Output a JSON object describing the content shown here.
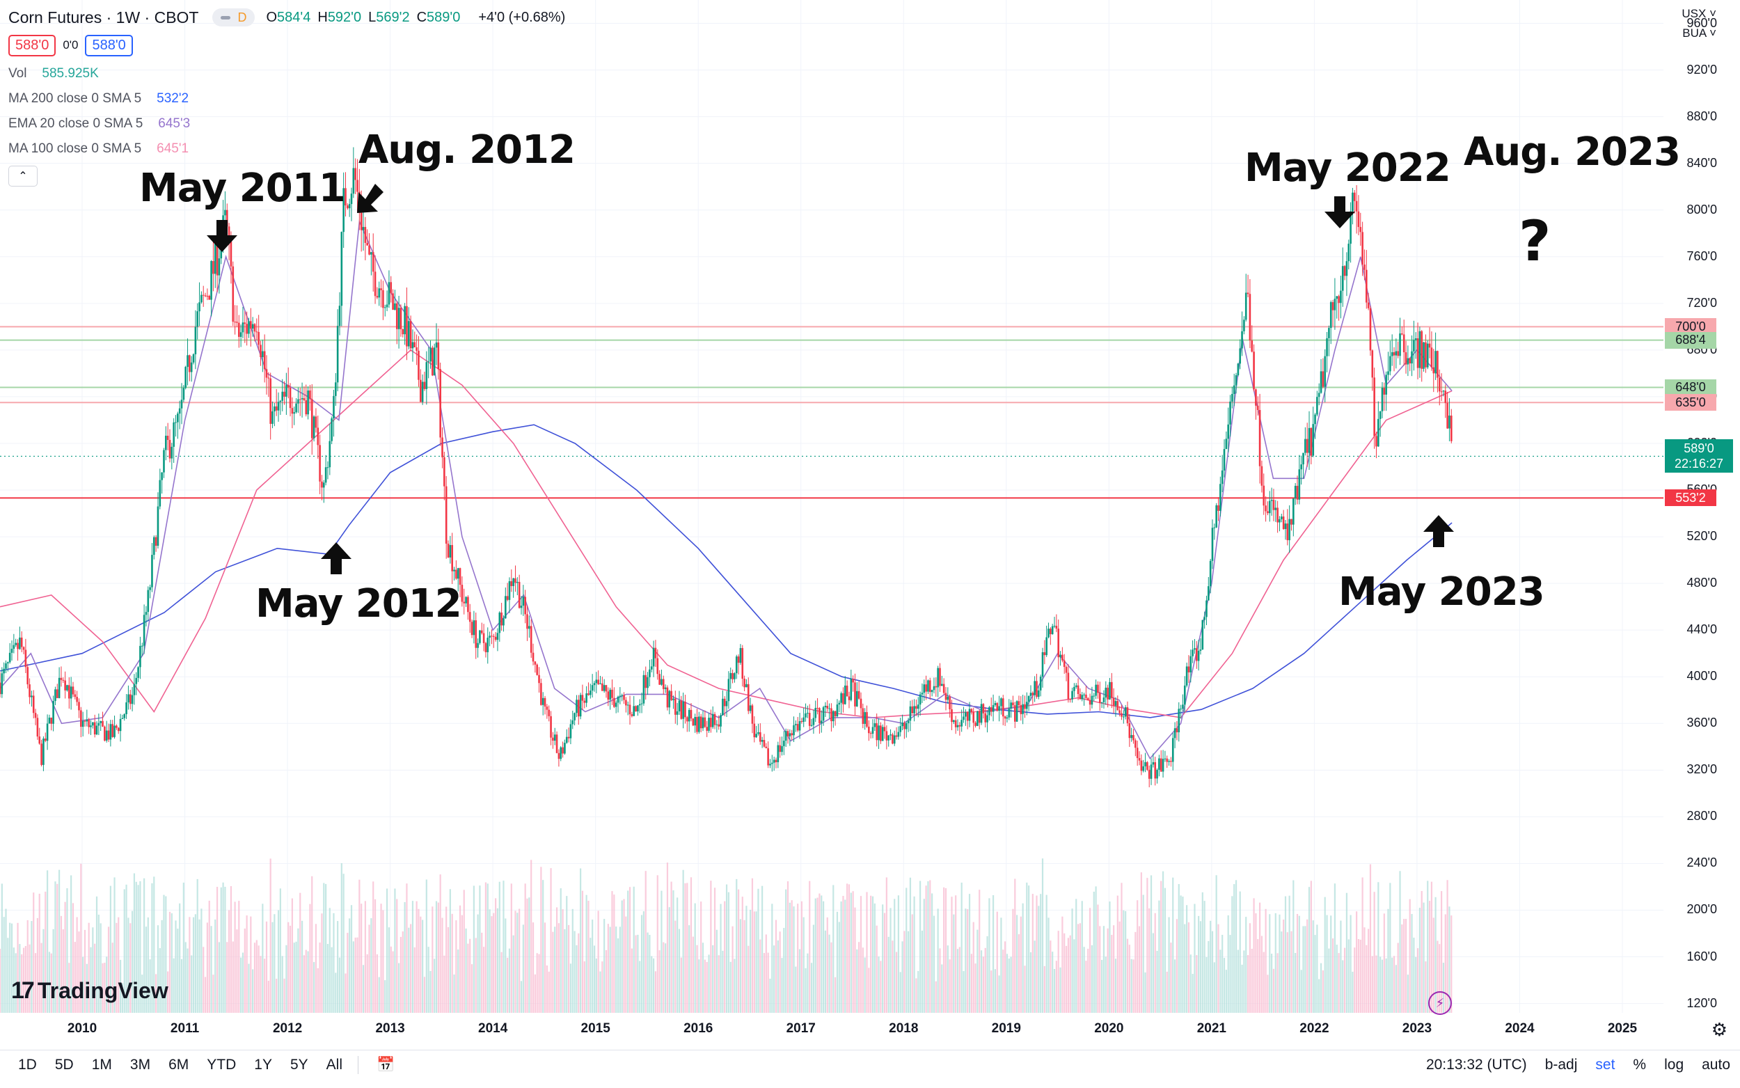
{
  "header": {
    "title": "Corn Futures · 1W · CBOT",
    "interval_badge": "D",
    "ohlc": [
      {
        "k": "O",
        "v": "584'4"
      },
      {
        "k": "H",
        "v": "592'0"
      },
      {
        "k": "L",
        "v": "569'2"
      },
      {
        "k": "C",
        "v": "589'0"
      }
    ],
    "change": "+4'0 (+0.68%)",
    "bid": "588'0",
    "spread": "0'0",
    "ask": "588'0"
  },
  "indicators": [
    {
      "name": "Vol",
      "value": "585.925K",
      "color": "#26a69a"
    },
    {
      "name": "MA 200 close 0 SMA 5",
      "value": "532'2",
      "color": "#2962ff"
    },
    {
      "name": "EMA 20 close 0 SMA 5",
      "value": "645'3",
      "color": "#9575cd"
    },
    {
      "name": "MA 100 close 0 SMA 5",
      "value": "645'1",
      "color": "#f48fb1"
    }
  ],
  "collapse_icon": "chevron-up-icon",
  "annotations": {
    "may2011": "May 2011",
    "aug2012": "Aug. 2012",
    "may2012": "May 2012",
    "may2022": "May 2022",
    "aug2023": "Aug. 2023",
    "question": "?",
    "may2023": "May 2023"
  },
  "currency": "USX",
  "unit": "BUA",
  "current_price": {
    "value": "589'0",
    "countdown": "22:16:27"
  },
  "price_tags": [
    {
      "label": "700'0",
      "price": 700,
      "color": "#f7a8ad"
    },
    {
      "label": "688'4",
      "price": 688.5,
      "color": "#a5d6a7"
    },
    {
      "label": "648'0",
      "price": 648,
      "color": "#a5d6a7"
    },
    {
      "label": "635'0",
      "price": 635,
      "color": "#f7a8ad"
    },
    {
      "label": "553'2",
      "price": 553.25,
      "color": "#f23645"
    }
  ],
  "brand": "TradingView",
  "bottom": {
    "ranges": [
      "1D",
      "5D",
      "1M",
      "3M",
      "6M",
      "YTD",
      "1Y",
      "5Y",
      "All"
    ],
    "time": "20:13:32 (UTC)",
    "badj": "b-adj",
    "set": "set",
    "percent": "%",
    "log": "log",
    "auto": "auto"
  },
  "chart_data": {
    "type": "candlestick",
    "title": "Corn Futures · 1W · CBOT",
    "y_axis": {
      "ticks": [
        "120'0",
        "160'0",
        "200'0",
        "240'0",
        "280'0",
        "320'0",
        "360'0",
        "400'0",
        "440'0",
        "480'0",
        "520'0",
        "560'0",
        "600'0",
        "640'0",
        "680'0",
        "720'0",
        "760'0",
        "800'0",
        "840'0",
        "880'0",
        "920'0",
        "960'0"
      ],
      "ylim": [
        112,
        980
      ]
    },
    "x_axis": {
      "ticks": [
        "2010",
        "2011",
        "2012",
        "2013",
        "2014",
        "2015",
        "2016",
        "2017",
        "2018",
        "2019",
        "2020",
        "2021",
        "2022",
        "2023",
        "2024",
        "2025"
      ],
      "xlim": [
        2009.2,
        2025.4
      ]
    },
    "price_path": [
      [
        2009.2,
        395
      ],
      [
        2009.4,
        430
      ],
      [
        2009.6,
        330
      ],
      [
        2009.8,
        405
      ],
      [
        2010.0,
        360
      ],
      [
        2010.3,
        350
      ],
      [
        2010.5,
        385
      ],
      [
        2010.65,
        470
      ],
      [
        2010.8,
        590
      ],
      [
        2010.95,
        620
      ],
      [
        2011.1,
        700
      ],
      [
        2011.25,
        740
      ],
      [
        2011.4,
        790
      ],
      [
        2011.5,
        690
      ],
      [
        2011.7,
        710
      ],
      [
        2011.85,
        620
      ],
      [
        2012.0,
        640
      ],
      [
        2012.2,
        640
      ],
      [
        2012.35,
        560
      ],
      [
        2012.45,
        630
      ],
      [
        2012.55,
        810
      ],
      [
        2012.65,
        830
      ],
      [
        2012.8,
        750
      ],
      [
        2012.95,
        730
      ],
      [
        2013.15,
        700
      ],
      [
        2013.3,
        650
      ],
      [
        2013.45,
        680
      ],
      [
        2013.55,
        520
      ],
      [
        2013.7,
        470
      ],
      [
        2013.85,
        430
      ],
      [
        2014.0,
        430
      ],
      [
        2014.2,
        490
      ],
      [
        2014.35,
        440
      ],
      [
        2014.5,
        370
      ],
      [
        2014.65,
        330
      ],
      [
        2014.8,
        370
      ],
      [
        2015.0,
        390
      ],
      [
        2015.2,
        380
      ],
      [
        2015.4,
        370
      ],
      [
        2015.55,
        420
      ],
      [
        2015.7,
        380
      ],
      [
        2015.85,
        370
      ],
      [
        2016.0,
        360
      ],
      [
        2016.2,
        365
      ],
      [
        2016.4,
        420
      ],
      [
        2016.55,
        350
      ],
      [
        2016.7,
        325
      ],
      [
        2016.9,
        355
      ],
      [
        2017.1,
        365
      ],
      [
        2017.3,
        370
      ],
      [
        2017.5,
        390
      ],
      [
        2017.65,
        355
      ],
      [
        2017.85,
        350
      ],
      [
        2018.0,
        355
      ],
      [
        2018.2,
        390
      ],
      [
        2018.35,
        400
      ],
      [
        2018.5,
        360
      ],
      [
        2018.7,
        365
      ],
      [
        2018.9,
        375
      ],
      [
        2019.1,
        370
      ],
      [
        2019.3,
        390
      ],
      [
        2019.45,
        450
      ],
      [
        2019.6,
        390
      ],
      [
        2019.75,
        380
      ],
      [
        2019.9,
        385
      ],
      [
        2020.0,
        390
      ],
      [
        2020.15,
        370
      ],
      [
        2020.3,
        320
      ],
      [
        2020.45,
        320
      ],
      [
        2020.6,
        330
      ],
      [
        2020.75,
        400
      ],
      [
        2020.9,
        430
      ],
      [
        2021.0,
        510
      ],
      [
        2021.2,
        640
      ],
      [
        2021.35,
        730
      ],
      [
        2021.5,
        560
      ],
      [
        2021.6,
        540
      ],
      [
        2021.75,
        520
      ],
      [
        2021.9,
        590
      ],
      [
        2022.0,
        610
      ],
      [
        2022.15,
        700
      ],
      [
        2022.3,
        760
      ],
      [
        2022.4,
        810
      ],
      [
        2022.5,
        740
      ],
      [
        2022.6,
        590
      ],
      [
        2022.7,
        670
      ],
      [
        2022.8,
        690
      ],
      [
        2022.95,
        680
      ],
      [
        2023.05,
        680
      ],
      [
        2023.15,
        670
      ],
      [
        2023.2,
        660
      ],
      [
        2023.28,
        640
      ],
      [
        2023.34,
        590
      ]
    ],
    "ma200_path": [
      [
        2009.2,
        405
      ],
      [
        2010.0,
        420
      ],
      [
        2010.8,
        455
      ],
      [
        2011.3,
        490
      ],
      [
        2011.9,
        510
      ],
      [
        2012.4,
        505
      ],
      [
        2012.6,
        530
      ],
      [
        2013.0,
        575
      ],
      [
        2013.5,
        600
      ],
      [
        2014.0,
        610
      ],
      [
        2014.4,
        616
      ],
      [
        2014.8,
        600
      ],
      [
        2015.4,
        560
      ],
      [
        2016.0,
        510
      ],
      [
        2016.5,
        460
      ],
      [
        2016.9,
        420
      ],
      [
        2017.4,
        400
      ],
      [
        2017.9,
        390
      ],
      [
        2018.4,
        378
      ],
      [
        2018.9,
        372
      ],
      [
        2019.4,
        368
      ],
      [
        2019.9,
        370
      ],
      [
        2020.4,
        365
      ],
      [
        2020.9,
        372
      ],
      [
        2021.4,
        390
      ],
      [
        2021.9,
        420
      ],
      [
        2022.4,
        460
      ],
      [
        2022.9,
        500
      ],
      [
        2023.34,
        532
      ]
    ],
    "ma100_path": [
      [
        2009.2,
        460
      ],
      [
        2009.7,
        470
      ],
      [
        2010.2,
        430
      ],
      [
        2010.7,
        370
      ],
      [
        2011.2,
        450
      ],
      [
        2011.7,
        560
      ],
      [
        2012.2,
        600
      ],
      [
        2012.7,
        640
      ],
      [
        2013.2,
        680
      ],
      [
        2013.7,
        650
      ],
      [
        2014.2,
        600
      ],
      [
        2014.7,
        530
      ],
      [
        2015.2,
        460
      ],
      [
        2015.7,
        410
      ],
      [
        2016.2,
        390
      ],
      [
        2016.7,
        380
      ],
      [
        2017.2,
        370
      ],
      [
        2017.7,
        365
      ],
      [
        2018.2,
        368
      ],
      [
        2018.7,
        370
      ],
      [
        2019.2,
        375
      ],
      [
        2019.7,
        382
      ],
      [
        2020.2,
        372
      ],
      [
        2020.7,
        365
      ],
      [
        2021.2,
        420
      ],
      [
        2021.7,
        500
      ],
      [
        2022.2,
        560
      ],
      [
        2022.7,
        620
      ],
      [
        2023.34,
        645
      ]
    ],
    "ema20_path": [
      [
        2009.2,
        390
      ],
      [
        2009.5,
        420
      ],
      [
        2009.8,
        360
      ],
      [
        2010.2,
        365
      ],
      [
        2010.6,
        420
      ],
      [
        2011.0,
        620
      ],
      [
        2011.4,
        760
      ],
      [
        2011.8,
        660
      ],
      [
        2012.2,
        640
      ],
      [
        2012.5,
        620
      ],
      [
        2012.7,
        790
      ],
      [
        2013.0,
        730
      ],
      [
        2013.4,
        680
      ],
      [
        2013.7,
        520
      ],
      [
        2014.0,
        440
      ],
      [
        2014.3,
        470
      ],
      [
        2014.6,
        390
      ],
      [
        2014.9,
        370
      ],
      [
        2015.3,
        385
      ],
      [
        2015.7,
        385
      ],
      [
        2016.2,
        365
      ],
      [
        2016.6,
        390
      ],
      [
        2016.9,
        345
      ],
      [
        2017.3,
        365
      ],
      [
        2017.7,
        365
      ],
      [
        2018.0,
        360
      ],
      [
        2018.4,
        385
      ],
      [
        2018.8,
        370
      ],
      [
        2019.2,
        375
      ],
      [
        2019.5,
        420
      ],
      [
        2019.8,
        390
      ],
      [
        2020.1,
        380
      ],
      [
        2020.4,
        330
      ],
      [
        2020.7,
        360
      ],
      [
        2021.0,
        480
      ],
      [
        2021.3,
        690
      ],
      [
        2021.6,
        570
      ],
      [
        2021.9,
        570
      ],
      [
        2022.2,
        680
      ],
      [
        2022.45,
        760
      ],
      [
        2022.7,
        650
      ],
      [
        2023.0,
        680
      ],
      [
        2023.34,
        645
      ]
    ]
  }
}
